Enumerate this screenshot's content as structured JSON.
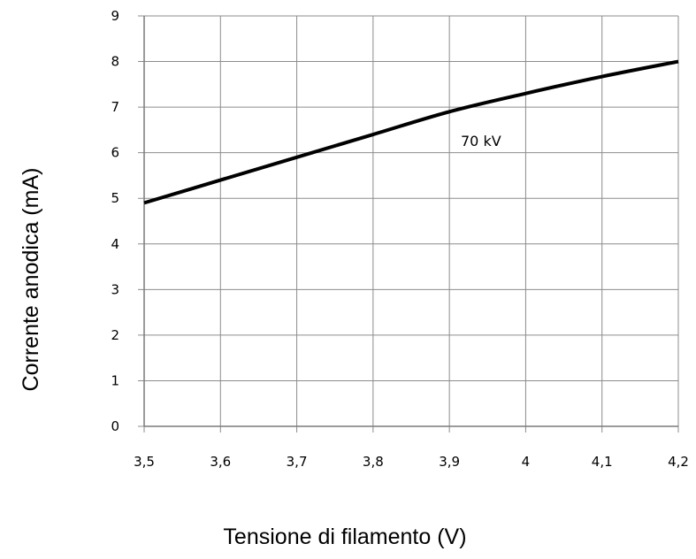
{
  "chart_data": {
    "type": "line",
    "title": "",
    "xlabel": "Tensione di filamento (V)",
    "ylabel": "Corrente anodica (mA)",
    "xlim": [
      3.5,
      4.2
    ],
    "ylim": [
      0,
      9
    ],
    "x_ticks": [
      "3,5",
      "3,6",
      "3,7",
      "3,8",
      "3,9",
      "4",
      "4,1",
      "4,2"
    ],
    "y_ticks": [
      "0",
      "1",
      "2",
      "3",
      "4",
      "5",
      "6",
      "7",
      "8",
      "9"
    ],
    "grid": true,
    "legend": "none",
    "series": [
      {
        "name": "70 kV",
        "color": "#000000",
        "x": [
          3.5,
          3.6,
          3.7,
          3.8,
          3.9,
          4.0,
          4.1,
          4.2
        ],
        "y": [
          4.9,
          5.4,
          5.9,
          6.4,
          6.9,
          7.3,
          7.67,
          8.0
        ]
      }
    ]
  }
}
